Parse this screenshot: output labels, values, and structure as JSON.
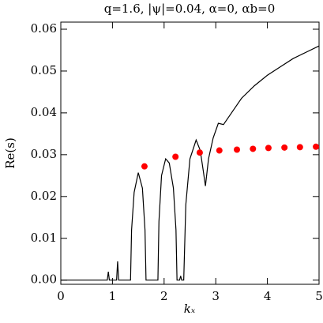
{
  "chart_data": {
    "type": "line",
    "title": "q=1.6, |ψ|=0.04, α=0, αb=0",
    "xlabel": "kₓ",
    "ylabel": "Re(s)",
    "xlim": [
      0,
      5
    ],
    "xticks": [
      0,
      1,
      2,
      3,
      4,
      5
    ],
    "ylim": [
      -0.001,
      0.0617
    ],
    "yticks": [
      {
        "value": 0,
        "label": "0.00"
      },
      0.01,
      0.02,
      0.03,
      0.04,
      0.05,
      0.06
    ],
    "series": [
      {
        "kind": "line",
        "color": "#000000",
        "x": [
          0,
          0.9,
          0.92,
          0.94,
          1.08,
          1.1,
          1.12,
          1.35,
          1.37,
          1.42,
          1.5,
          1.58,
          1.63,
          1.65,
          1.88,
          1.9,
          1.95,
          2.03,
          2.1,
          2.18,
          2.23,
          2.25,
          2.3,
          2.32,
          2.34,
          2.38,
          2.42,
          2.5,
          2.62,
          2.7,
          2.76,
          2.8,
          2.86,
          2.95,
          3.05,
          3.15,
          3.25,
          3.5,
          3.75,
          4,
          4.25,
          4.5,
          4.75,
          5
        ],
        "values": [
          0,
          0,
          0.002,
          0,
          0,
          0.0045,
          0,
          0,
          0.012,
          0.021,
          0.0257,
          0.022,
          0.012,
          0,
          0,
          0.014,
          0.025,
          0.029,
          0.028,
          0.022,
          0.012,
          0,
          0,
          0.001,
          0,
          0,
          0.018,
          0.029,
          0.0335,
          0.031,
          0.026,
          0.0225,
          0.029,
          0.034,
          0.0375,
          0.0372,
          0.039,
          0.0435,
          0.0465,
          0.049,
          0.051,
          0.053,
          0.0545,
          0.056
        ]
      },
      {
        "kind": "scatter",
        "color": "#ff0000",
        "x": [
          1.62,
          2.22,
          2.69,
          3.07,
          3.41,
          3.72,
          4.02,
          4.33,
          4.63,
          4.94
        ],
        "values": [
          0.0272,
          0.0295,
          0.0305,
          0.031,
          0.0312,
          0.0314,
          0.0316,
          0.0317,
          0.0318,
          0.0319
        ]
      }
    ]
  }
}
